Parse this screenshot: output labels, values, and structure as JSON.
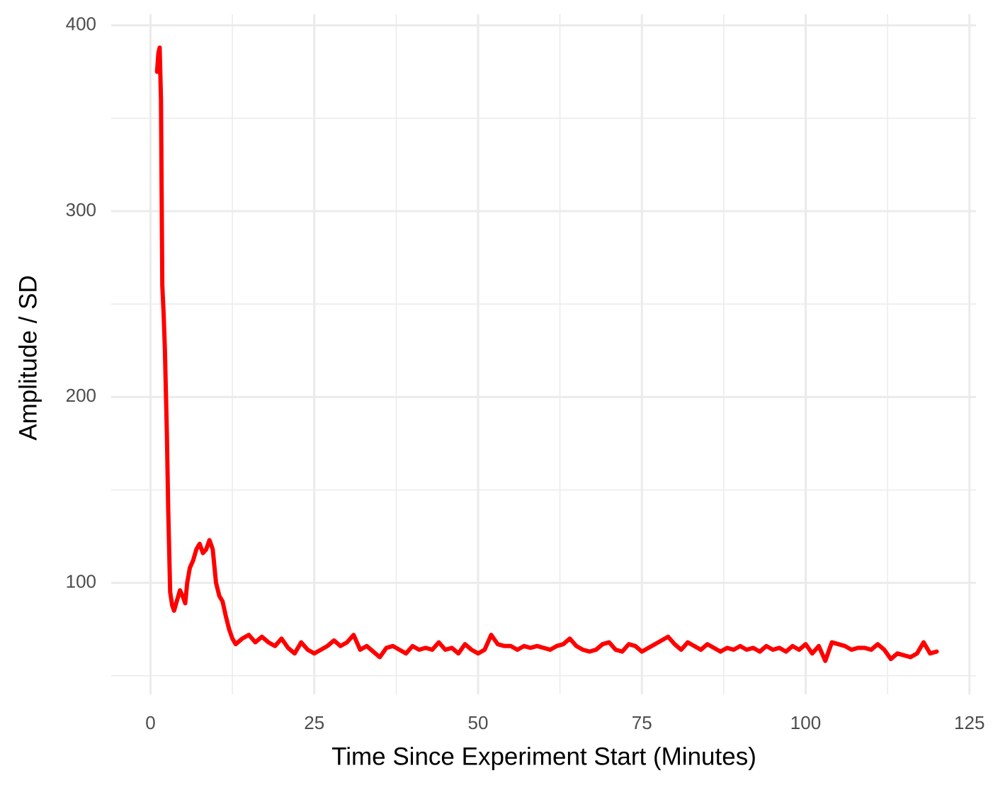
{
  "chart_data": {
    "type": "line",
    "xlabel": "Time Since Experiment Start (Minutes)",
    "ylabel": "Amplitude / SD",
    "xlim": [
      -6,
      126
    ],
    "ylim": [
      40,
      406
    ],
    "xticks": [
      0,
      25,
      50,
      75,
      100,
      125
    ],
    "yticks": [
      100,
      200,
      300,
      400
    ],
    "xticks_minor": [
      12.5,
      37.5,
      62.5,
      87.5,
      112.5
    ],
    "yticks_minor": [
      50,
      150,
      250,
      350
    ],
    "grid": true,
    "series": [
      {
        "color": "#ff0000",
        "x": [
          1.0,
          1.2,
          1.4,
          1.6,
          1.8,
          2.0,
          2.2,
          2.5,
          2.7,
          3.0,
          3.3,
          3.6,
          4.0,
          4.5,
          5.0,
          5.3,
          5.6,
          6.0,
          6.5,
          7.0,
          7.5,
          8.0,
          8.5,
          9.0,
          9.5,
          10,
          10.5,
          11,
          11.5,
          12,
          12.5,
          13,
          14,
          15,
          16,
          17,
          18,
          19,
          20,
          21,
          22,
          23,
          24,
          25,
          26,
          27,
          28,
          29,
          30,
          31,
          32,
          33,
          34,
          35,
          36,
          37,
          38,
          39,
          40,
          41,
          42,
          43,
          44,
          45,
          46,
          47,
          48,
          49,
          50,
          51,
          52,
          53,
          54,
          55,
          56,
          57,
          58,
          59,
          60,
          61,
          62,
          63,
          64,
          65,
          66,
          67,
          68,
          69,
          70,
          71,
          72,
          73,
          74,
          75,
          76,
          77,
          78,
          79,
          80,
          81,
          82,
          83,
          84,
          85,
          86,
          87,
          88,
          89,
          90,
          91,
          92,
          93,
          94,
          95,
          96,
          97,
          98,
          99,
          100,
          101,
          102,
          103,
          104,
          105,
          106,
          107,
          108,
          109,
          110,
          111,
          112,
          113,
          114,
          115,
          116,
          117,
          118,
          119,
          120
        ],
        "values": [
          375,
          385,
          388,
          360,
          260,
          245,
          225,
          180,
          140,
          95,
          88,
          85,
          90,
          96,
          92,
          89,
          100,
          108,
          112,
          118,
          121,
          116,
          118,
          123,
          118,
          100,
          93,
          90,
          82,
          75,
          70,
          67,
          70,
          72,
          68,
          71,
          68,
          66,
          70,
          65,
          62,
          68,
          64,
          62,
          64,
          66,
          69,
          66,
          68,
          72,
          64,
          66,
          63,
          60,
          65,
          66,
          64,
          62,
          66,
          64,
          65,
          64,
          68,
          64,
          65,
          62,
          67,
          64,
          62,
          64,
          72,
          67,
          66,
          66,
          64,
          66,
          65,
          66,
          65,
          64,
          66,
          67,
          70,
          66,
          64,
          63,
          64,
          67,
          68,
          64,
          63,
          67,
          66,
          63,
          65,
          67,
          69,
          71,
          67,
          64,
          68,
          66,
          64,
          67,
          65,
          63,
          65,
          64,
          66,
          64,
          65,
          63,
          66,
          64,
          65,
          63,
          66,
          64,
          67,
          62,
          66,
          58,
          68,
          67,
          66,
          64,
          65,
          65,
          64,
          67,
          64,
          59,
          62,
          61,
          60,
          62,
          68,
          62,
          63
        ]
      }
    ]
  }
}
